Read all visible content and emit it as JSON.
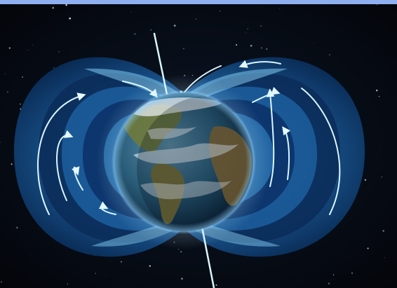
{
  "image": {
    "subject": "earth-magnetic-field-illustration",
    "colors": {
      "top_bar": "#8fb0f0",
      "space_background": "#05070d",
      "field_shell_dark": "#0b2f63",
      "field_shell_light": "#5fb6e6",
      "field_line": "#d9f6ff",
      "ocean": "#1e4f6e",
      "land": "#6f7a3c",
      "cloud": "#e8eef2"
    },
    "icons": [
      "north-pole-axis-icon",
      "south-pole-axis-icon",
      "field-arrow-icon"
    ]
  }
}
